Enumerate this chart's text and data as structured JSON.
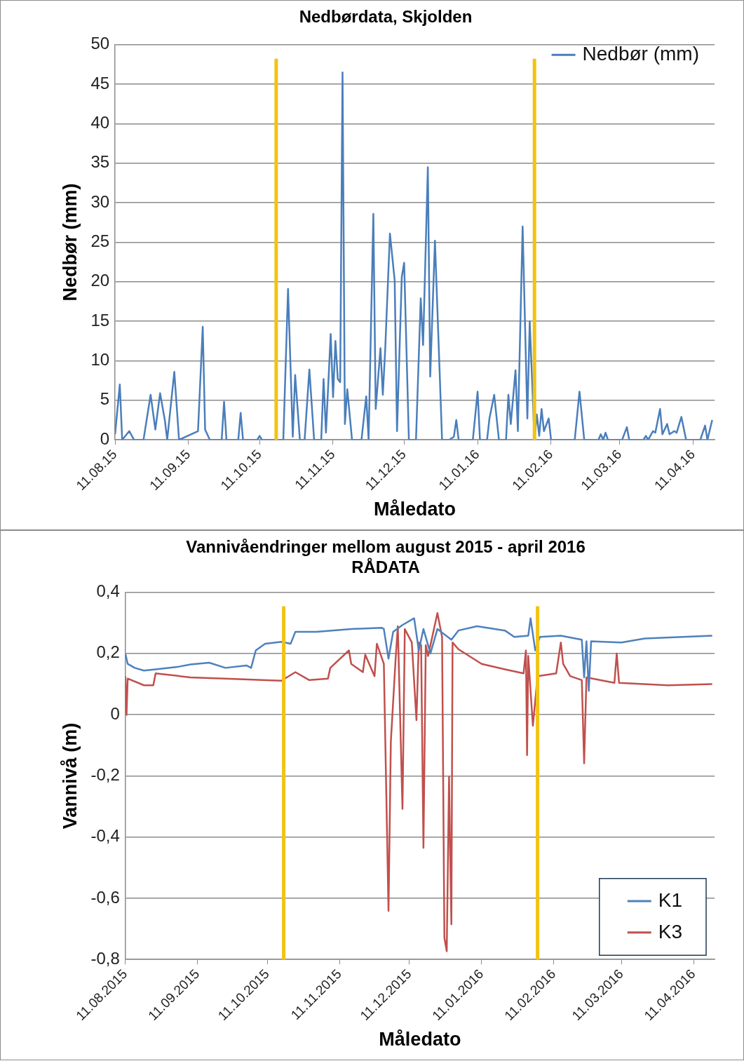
{
  "chart_data": [
    {
      "type": "line",
      "title": "Nedbørdata, Skjolden",
      "xlabel": "Måledato",
      "ylabel": "Nedbør (mm)",
      "x": [
        "2015-08-11",
        "2015-08-13",
        "2015-08-14",
        "2015-08-17",
        "2015-08-19",
        "2015-08-23",
        "2015-08-26",
        "2015-08-28",
        "2015-08-30",
        "2015-09-01",
        "2015-09-02",
        "2015-09-05",
        "2015-09-07",
        "2015-09-15",
        "2015-09-17",
        "2015-09-18",
        "2015-09-20",
        "2015-09-25",
        "2015-09-26",
        "2015-09-27",
        "2015-10-02",
        "2015-10-03",
        "2015-10-04",
        "2015-10-10",
        "2015-10-11",
        "2015-10-12",
        "2015-10-21",
        "2015-10-23",
        "2015-10-25",
        "2015-10-26",
        "2015-10-28",
        "2015-10-30",
        "2015-11-01",
        "2015-11-03",
        "2015-11-06",
        "2015-11-07",
        "2015-11-08",
        "2015-11-10",
        "2015-11-11",
        "2015-11-12",
        "2015-11-13",
        "2015-11-14",
        "2015-11-15",
        "2015-11-16",
        "2015-11-17",
        "2015-11-19",
        "2015-11-23",
        "2015-11-25",
        "2015-11-26",
        "2015-11-28",
        "2015-11-29",
        "2015-12-01",
        "2015-12-02",
        "2015-12-03",
        "2015-12-05",
        "2015-12-07",
        "2015-12-08",
        "2015-12-10",
        "2015-12-11",
        "2015-12-13",
        "2015-12-16",
        "2015-12-18",
        "2015-12-19",
        "2015-12-21",
        "2015-12-22",
        "2015-12-24",
        "2015-12-27",
        "2015-12-30",
        "2016-01-01",
        "2016-01-02",
        "2016-01-03",
        "2016-01-09",
        "2016-01-11",
        "2016-01-12",
        "2016-01-15",
        "2016-01-16",
        "2016-01-18",
        "2016-01-20",
        "2016-01-23",
        "2016-01-24",
        "2016-01-25",
        "2016-01-27",
        "2016-01-28",
        "2016-01-30",
        "2016-02-01",
        "2016-02-02",
        "2016-02-04",
        "2016-02-05",
        "2016-02-06",
        "2016-02-07",
        "2016-02-08",
        "2016-02-10",
        "2016-02-11",
        "2016-02-21",
        "2016-02-23",
        "2016-02-25",
        "2016-03-02",
        "2016-03-03",
        "2016-03-04",
        "2016-03-05",
        "2016-03-06",
        "2016-03-12",
        "2016-03-14",
        "2016-03-15",
        "2016-03-21",
        "2016-03-22",
        "2016-03-23",
        "2016-03-25",
        "2016-03-26",
        "2016-03-28",
        "2016-03-29",
        "2016-03-31",
        "2016-04-01",
        "2016-04-03",
        "2016-04-04",
        "2016-04-06",
        "2016-04-08",
        "2016-04-14",
        "2016-04-16",
        "2016-04-17",
        "2016-04-19"
      ],
      "series": [
        {
          "name": "Nedbør (mm)",
          "color": "#4a7ebb",
          "values": [
            0.7,
            7.0,
            0,
            1.1,
            0,
            0,
            5.7,
            1.3,
            5.9,
            2.5,
            0,
            8.6,
            0,
            1.1,
            14.3,
            1.3,
            0,
            0,
            4.8,
            0,
            0,
            3.4,
            0,
            0,
            0.5,
            0,
            0,
            19.1,
            0.4,
            8.2,
            0,
            0,
            8.9,
            0,
            0,
            7.7,
            0.9,
            13.4,
            5.4,
            12.5,
            7.7,
            7.3,
            46.5,
            2.0,
            6.4,
            0,
            0,
            5.5,
            0,
            28.6,
            3.9,
            11.6,
            5.7,
            11.4,
            26.1,
            20.2,
            1.1,
            20.6,
            22.4,
            0,
            0,
            17.9,
            12.0,
            34.5,
            8.0,
            25.2,
            0,
            0,
            0.4,
            2.5,
            0,
            0,
            6.1,
            0,
            0,
            2.7,
            5.7,
            0,
            0,
            5.7,
            2.0,
            8.8,
            1.1,
            27.0,
            2.7,
            15.0,
            0,
            3.2,
            0.5,
            3.9,
            1.1,
            2.7,
            0,
            0,
            6.1,
            0,
            0,
            0.7,
            0,
            0.9,
            0,
            0,
            1.6,
            0,
            0,
            0.5,
            0,
            1.1,
            0.9,
            3.9,
            0.7,
            2.0,
            0.7,
            1.1,
            0.9,
            2.9,
            0,
            0,
            1.8,
            0,
            2.5
          ]
        }
      ],
      "xlim": [
        "2015-08-11",
        "2016-04-20"
      ],
      "xticks": [
        {
          "value": "2015-08-11",
          "label": "11.08.15"
        },
        {
          "value": "2015-09-11",
          "label": "11.09.15"
        },
        {
          "value": "2015-10-11",
          "label": "11.10.15"
        },
        {
          "value": "2015-11-11",
          "label": "11.11.15"
        },
        {
          "value": "2015-12-11",
          "label": "11.12.15"
        },
        {
          "value": "2016-01-11",
          "label": "11.01.16"
        },
        {
          "value": "2016-02-11",
          "label": "11.02.16"
        },
        {
          "value": "2016-03-11",
          "label": "11.03.16"
        },
        {
          "value": "2016-04-11",
          "label": "11.04.16"
        }
      ],
      "ylim": [
        0,
        50
      ],
      "yticks": [
        0,
        5,
        10,
        15,
        20,
        25,
        30,
        35,
        40,
        45,
        50
      ],
      "grid": "y",
      "legend": "top right",
      "ref_lines": [
        {
          "axis": "x",
          "value": "2015-10-18",
          "color": "#f2c314"
        },
        {
          "axis": "x",
          "value": "2016-02-04",
          "color": "#f2c314"
        }
      ]
    },
    {
      "type": "line",
      "title": "Vannivåendringer mellom august 2015 - april 2016",
      "subtitle": "RÅDATA",
      "xlabel": "Måledato",
      "ylabel": "Vannivå (m)",
      "series": [
        {
          "name": "K1",
          "color": "#4f81bd",
          "x": [
            "2015-08-11",
            "2015-08-12",
            "2015-08-15",
            "2015-08-19",
            "2015-08-24",
            "2015-09-03",
            "2015-09-08",
            "2015-09-16",
            "2015-09-23",
            "2015-10-02",
            "2015-10-04",
            "2015-10-06",
            "2015-10-10",
            "2015-10-17",
            "2015-10-21",
            "2015-10-23",
            "2015-11-01",
            "2015-11-16",
            "2015-11-29",
            "2015-11-30",
            "2015-12-02",
            "2015-12-04",
            "2015-12-08",
            "2015-12-13",
            "2015-12-15",
            "2015-12-17",
            "2015-12-20",
            "2015-12-23",
            "2015-12-29",
            "2016-01-01",
            "2016-01-09",
            "2016-01-21",
            "2016-01-25",
            "2016-01-31",
            "2016-02-01",
            "2016-02-03",
            "2016-02-05",
            "2016-02-14",
            "2016-02-23",
            "2016-02-24",
            "2016-02-25",
            "2016-02-26",
            "2016-02-27",
            "2016-03-11",
            "2016-03-21",
            "2016-04-19"
          ],
          "values": [
            0.2,
            0.166,
            0.153,
            0.144,
            0.148,
            0.157,
            0.164,
            0.17,
            0.153,
            0.161,
            0.153,
            0.21,
            0.232,
            0.238,
            0.232,
            0.271,
            0.271,
            0.28,
            0.284,
            0.28,
            0.183,
            0.271,
            0.293,
            0.315,
            0.21,
            0.28,
            0.2,
            0.28,
            0.245,
            0.275,
            0.289,
            0.275,
            0.254,
            0.258,
            0.315,
            0.21,
            0.254,
            0.258,
            0.245,
            0.122,
            0.24,
            0.078,
            0.24,
            0.236,
            0.249,
            0.258
          ]
        },
        {
          "name": "K3",
          "color": "#c0504d",
          "x": [
            "2015-08-11",
            "2015-08-11T12:00",
            "2015-08-12",
            "2015-08-19",
            "2015-08-23",
            "2015-08-24",
            "2015-09-08",
            "2015-09-23",
            "2015-10-17",
            "2015-10-23",
            "2015-10-29",
            "2015-11-06",
            "2015-11-07",
            "2015-11-15",
            "2015-11-16",
            "2015-11-21",
            "2015-11-22",
            "2015-11-26",
            "2015-11-27",
            "2015-11-30",
            "2015-12-02",
            "2015-12-03",
            "2015-12-05",
            "2015-12-06",
            "2015-12-08",
            "2015-12-09",
            "2015-12-12",
            "2015-12-14",
            "2015-12-15",
            "2015-12-16",
            "2015-12-17",
            "2015-12-18",
            "2015-12-19",
            "2015-12-23",
            "2015-12-25",
            "2015-12-26",
            "2015-12-27",
            "2015-12-28",
            "2015-12-28T12:00",
            "2015-12-29",
            "2015-12-29T12:00",
            "2016-01-01",
            "2016-01-11",
            "2016-01-21",
            "2016-01-29",
            "2016-01-30",
            "2016-01-30T12:00",
            "2016-01-31",
            "2016-02-02",
            "2016-02-04",
            "2016-02-12",
            "2016-02-14",
            "2016-02-15",
            "2016-02-18",
            "2016-02-23",
            "2016-02-24",
            "2016-02-25",
            "2016-03-08",
            "2016-03-09",
            "2016-03-10",
            "2016-03-31",
            "2016-04-19"
          ],
          "values": [
            0.126,
            -0.001,
            0.118,
            0.096,
            0.096,
            0.135,
            0.122,
            0.118,
            0.111,
            0.139,
            0.113,
            0.118,
            0.153,
            0.21,
            0.166,
            0.139,
            0.196,
            0.126,
            0.232,
            0.166,
            -0.641,
            -0.089,
            0.175,
            0.289,
            -0.308,
            0.28,
            0.236,
            -0.018,
            0.236,
            0.227,
            -0.435,
            0.227,
            0.192,
            0.332,
            0.254,
            -0.729,
            -0.773,
            -0.203,
            -0.466,
            -0.685,
            0.236,
            0.214,
            0.166,
            0.148,
            0.135,
            0.21,
            -0.132,
            0.192,
            -0.036,
            0.126,
            0.135,
            0.236,
            0.166,
            0.126,
            0.113,
            -0.159,
            0.122,
            0.104,
            0.2,
            0.104,
            0.096,
            0.1
          ]
        }
      ],
      "xlim": [
        "2015-08-11",
        "2016-04-20"
      ],
      "xticks": [
        {
          "value": "2015-08-11",
          "label": "11.08.2015"
        },
        {
          "value": "2015-09-11",
          "label": "11.09.2015"
        },
        {
          "value": "2015-10-11",
          "label": "11.10.2015"
        },
        {
          "value": "2015-11-11",
          "label": "11.11.2015"
        },
        {
          "value": "2015-12-11",
          "label": "11.12.2015"
        },
        {
          "value": "2016-01-11",
          "label": "11.01.2016"
        },
        {
          "value": "2016-02-11",
          "label": "11.02.2016"
        },
        {
          "value": "2016-03-11",
          "label": "11.03.2016"
        },
        {
          "value": "2016-04-11",
          "label": "11.04.2016"
        }
      ],
      "ylim": [
        -0.8,
        0.4
      ],
      "yticks": [
        {
          "value": -0.8,
          "label": "-0,8"
        },
        {
          "value": -0.6,
          "label": "-0,6"
        },
        {
          "value": -0.4,
          "label": "-0,4"
        },
        {
          "value": -0.2,
          "label": "-0,2"
        },
        0,
        {
          "value": 0.2,
          "label": "0,2"
        },
        {
          "value": 0.4,
          "label": "0,4"
        }
      ],
      "grid": "y",
      "legend": "bottom right",
      "ref_lines": [
        {
          "axis": "x",
          "value": "2015-10-18",
          "color": "#f2c314"
        },
        {
          "axis": "x",
          "value": "2016-02-04",
          "color": "#f2c314"
        }
      ]
    }
  ]
}
